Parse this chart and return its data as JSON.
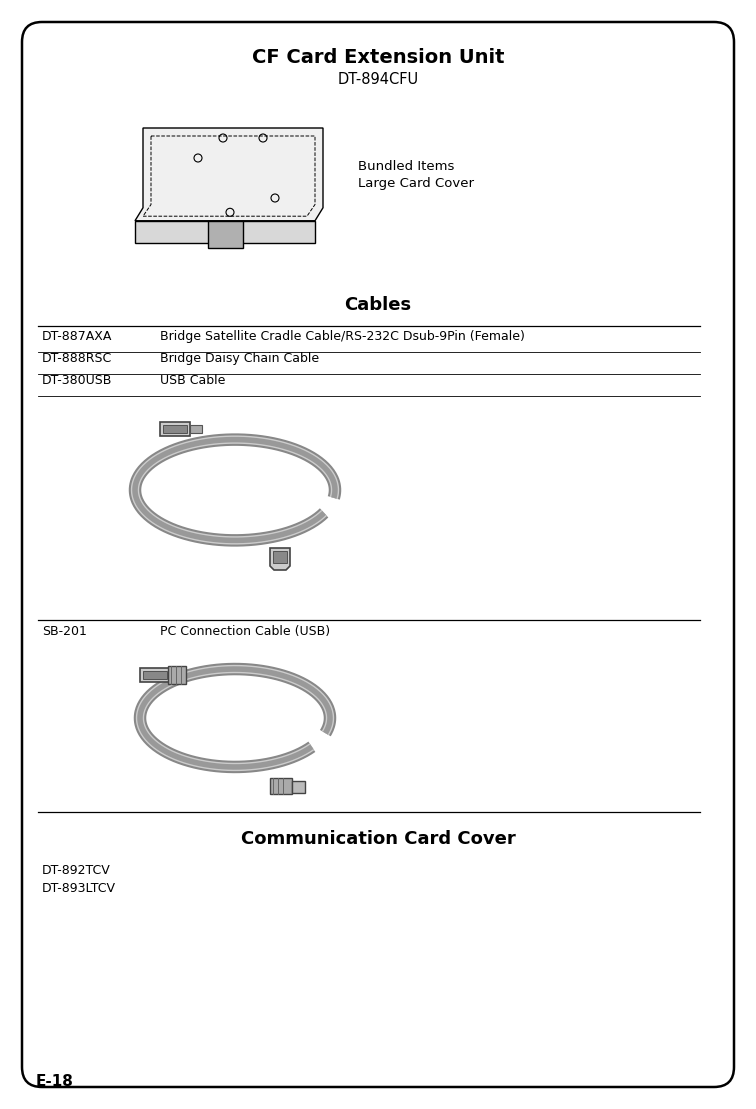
{
  "bg_color": "#ffffff",
  "border_color": "#000000",
  "page_label": "E-18",
  "section1_title": "CF Card Extension Unit",
  "section1_model": "DT-894CFU",
  "bundled_label_line1": "Bundled Items",
  "bundled_label_line2": "Large Card Cover",
  "section2_title": "Cables",
  "cables_table": [
    {
      "model": "DT-887AXA",
      "desc": "Bridge Satellite Cradle Cable/RS-232C Dsub-9Pin (Female)"
    },
    {
      "model": "DT-888RSC",
      "desc": "Bridge Daisy Chain Cable"
    },
    {
      "model": "DT-380USB",
      "desc": "USB Cable"
    }
  ],
  "section3_model": "SB-201",
  "section3_desc": "PC Connection Cable (USB)",
  "section4_title": "Communication Card Cover",
  "section4_models": [
    "DT-892TCV",
    "DT-893LTCV"
  ],
  "text_color": "#000000",
  "line_color": "#000000",
  "fig_width": 7.56,
  "fig_height": 11.09,
  "dpi": 100
}
